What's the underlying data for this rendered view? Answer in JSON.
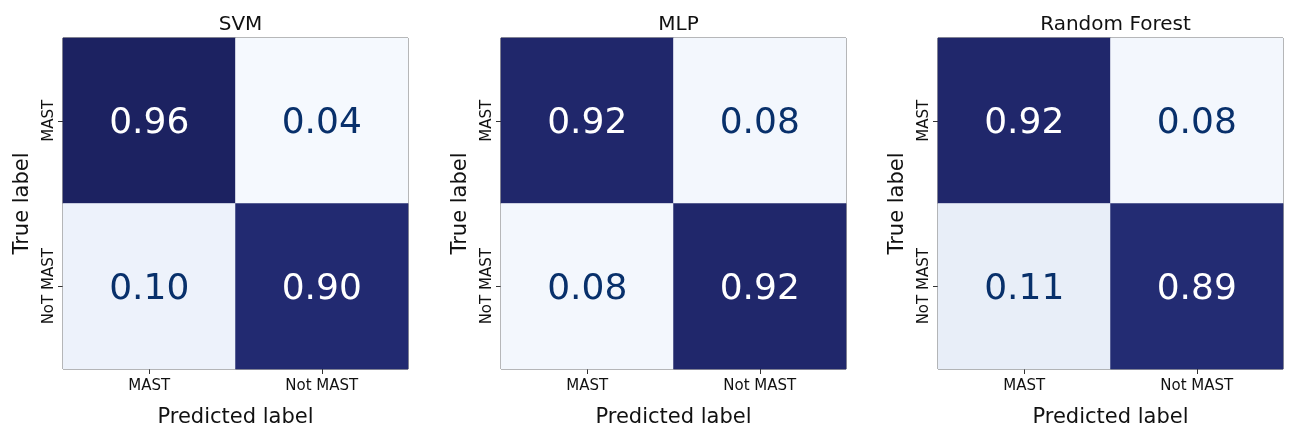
{
  "chart_data": [
    {
      "type": "heatmap",
      "title": "SVM",
      "xlabel": "Predicted label",
      "ylabel": "True label",
      "categories": [
        "MAST",
        "Not MAST"
      ],
      "y_categories": [
        "MAST",
        "NoT MAST"
      ],
      "cells": [
        [
          0.96,
          0.04
        ],
        [
          0.1,
          0.9
        ]
      ],
      "cell_labels": [
        [
          "0.96",
          "0.04"
        ],
        [
          "0.10",
          "0.90"
        ]
      ],
      "data_labels": true
    },
    {
      "type": "heatmap",
      "title": "MLP",
      "xlabel": "Predicted label",
      "ylabel": "True label",
      "categories": [
        "MAST",
        "Not MAST"
      ],
      "y_categories": [
        "MAST",
        "NoT MAST"
      ],
      "cells": [
        [
          0.92,
          0.08
        ],
        [
          0.08,
          0.92
        ]
      ],
      "data_labels": true
    },
    {
      "type": "heatmap",
      "title": "Random Forest",
      "xlabel": "Predicted label",
      "ylabel": "True label",
      "categories": [
        "MAST",
        "Not MAST"
      ],
      "y_categories": [
        "MAST",
        "NoT MAST"
      ],
      "cells": [
        [
          0.92,
          0.08
        ],
        [
          0.11,
          0.89
        ]
      ],
      "data_labels": true
    }
  ]
}
